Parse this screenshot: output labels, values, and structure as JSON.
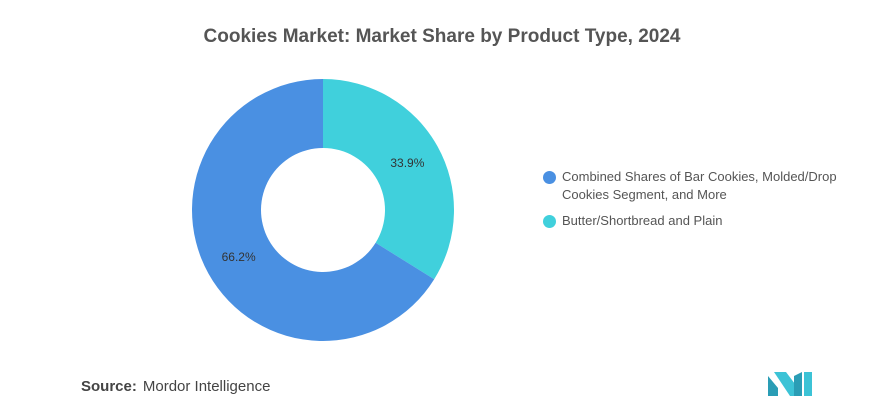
{
  "chart_data": {
    "type": "pie",
    "title": "Cookies Market: Market Share by Product Type, 2024",
    "donut": true,
    "categories": [
      "Combined Shares of Bar Cookies, Molded/Drop Cookies Segment, and More",
      "Butter/Shortbread and Plain"
    ],
    "values": [
      66.2,
      33.9
    ],
    "data_labels": [
      "66.2%",
      "33.9%"
    ],
    "colors": [
      "#4a90e2",
      "#40d0dc"
    ],
    "legend": "right"
  },
  "legend": {
    "items": [
      {
        "label": "Combined Shares of Bar Cookies, Molded/Drop Cookies Segment, and More",
        "color": "#4a90e2"
      },
      {
        "label": "Butter/Shortbread and Plain",
        "color": "#40d0dc"
      }
    ]
  },
  "source": {
    "label": "Source:",
    "text": "Mordor Intelligence"
  },
  "logo": {
    "icon": "mordor-intelligence-logo-icon",
    "color": "#2a9db5"
  }
}
